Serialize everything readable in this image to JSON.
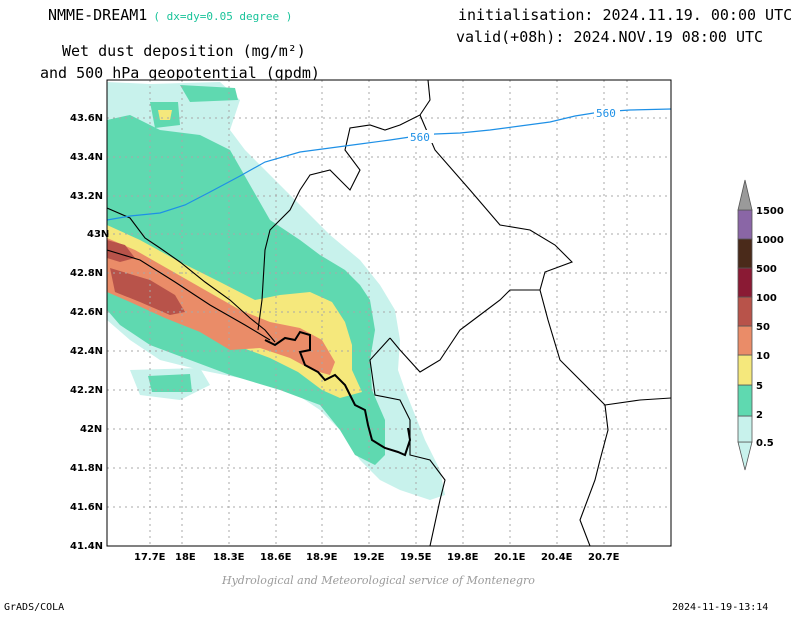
{
  "header": {
    "model": "NMME-DREAM1",
    "resolution": "( dx=dy=0.05 degree )",
    "init": "initialisation: 2024.11.19. 00:00 UTC",
    "valid": "valid(+08h): 2024.NOV.19 08:00 UTC",
    "title_line1": "Wet dust deposition (mg/m²)",
    "title_line2": "and 500 hPa geopotential (gpdm)"
  },
  "footer": {
    "credit": "Hydrological and Meteorological service of Montenegro",
    "software": "GrADS/COLA",
    "timestamp": "2024-11-19-13:14"
  },
  "map": {
    "lon_range": [
      17.45,
      21.05
    ],
    "lat_range": [
      41.4,
      43.7
    ],
    "lon_ticks": [
      "17.7E",
      "18E",
      "18.3E",
      "18.6E",
      "18.9E",
      "19.2E",
      "19.5E",
      "19.8E",
      "20.1E",
      "20.4E",
      "20.7E"
    ],
    "lat_ticks": [
      "41.4N",
      "41.6N",
      "41.8N",
      "42N",
      "42.2N",
      "42.4N",
      "42.6N",
      "42.8N",
      "43N",
      "43.2N",
      "43.4N",
      "43.6N"
    ],
    "contour_label": "560",
    "contour_color": "#1e90e6"
  },
  "legend": {
    "levels": [
      {
        "label": "0.5",
        "color": "#c8f2ec"
      },
      {
        "label": "2",
        "color": "#5fd9b0"
      },
      {
        "label": "5",
        "color": "#f5e87c"
      },
      {
        "label": "10",
        "color": "#ea8c68"
      },
      {
        "label": "50",
        "color": "#b8534a"
      },
      {
        "label": "100",
        "color": "#8a1a34"
      },
      {
        "label": "500",
        "color": "#4a2a1a"
      },
      {
        "label": "1000",
        "color": "#8a66a6"
      },
      {
        "label": "1500",
        "color": "#9a9a9a"
      }
    ]
  }
}
